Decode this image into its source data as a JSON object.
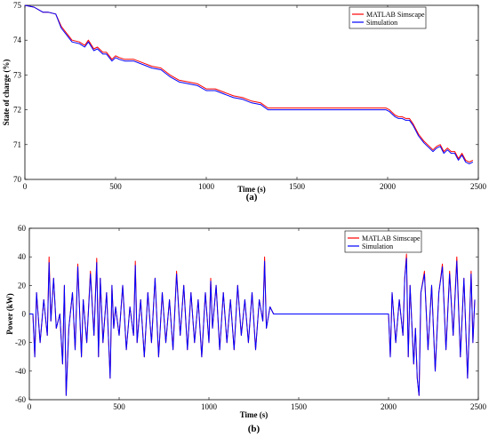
{
  "colors": {
    "matlab": "#ff0000",
    "simulation": "#0000ff",
    "axis": "#000000"
  },
  "chart_data": [
    {
      "type": "line",
      "caption": "(a)",
      "xlabel": "Time (s)",
      "ylabel": "State of charge (%)",
      "xlim": [
        0,
        2500
      ],
      "ylim": [
        70,
        75
      ],
      "xticks": [
        "0",
        "500",
        "1000",
        "1500",
        "2000",
        "2500"
      ],
      "yticks": [
        "70",
        "71",
        "72",
        "73",
        "74",
        "75"
      ],
      "grid": false,
      "legend_position": "top-right",
      "series": [
        {
          "name": "MATLAB Simscape",
          "color": "#ff0000",
          "x": [
            0,
            50,
            100,
            130,
            170,
            200,
            230,
            260,
            300,
            330,
            350,
            380,
            400,
            430,
            450,
            480,
            500,
            520,
            550,
            600,
            650,
            700,
            750,
            800,
            850,
            900,
            950,
            1000,
            1050,
            1100,
            1150,
            1200,
            1250,
            1300,
            1340,
            1360,
            1400,
            1500,
            1600,
            1700,
            1800,
            1900,
            1990,
            2010,
            2040,
            2060,
            2080,
            2100,
            2120,
            2140,
            2170,
            2200,
            2230,
            2250,
            2270,
            2290,
            2310,
            2330,
            2350,
            2370,
            2390,
            2410,
            2430,
            2450,
            2470
          ],
          "y": [
            75.0,
            74.95,
            74.8,
            74.8,
            74.75,
            74.4,
            74.2,
            74.0,
            73.95,
            73.85,
            74.0,
            73.75,
            73.8,
            73.65,
            73.65,
            73.45,
            73.55,
            73.5,
            73.45,
            73.45,
            73.35,
            73.25,
            73.2,
            73.0,
            72.85,
            72.8,
            72.75,
            72.6,
            72.6,
            72.5,
            72.4,
            72.35,
            72.25,
            72.2,
            72.05,
            72.05,
            72.05,
            72.05,
            72.05,
            72.05,
            72.05,
            72.05,
            72.05,
            72.0,
            71.85,
            71.8,
            71.8,
            71.75,
            71.75,
            71.6,
            71.3,
            71.1,
            70.95,
            70.85,
            70.95,
            71.0,
            70.8,
            70.9,
            70.8,
            70.8,
            70.6,
            70.75,
            70.55,
            70.5,
            70.55
          ]
        },
        {
          "name": "Simulation",
          "color": "#0000ff",
          "x": [
            0,
            50,
            100,
            130,
            170,
            200,
            230,
            260,
            300,
            330,
            350,
            380,
            400,
            430,
            450,
            480,
            500,
            520,
            550,
            600,
            650,
            700,
            750,
            800,
            850,
            900,
            950,
            1000,
            1050,
            1100,
            1150,
            1200,
            1250,
            1300,
            1340,
            1360,
            1400,
            1500,
            1600,
            1700,
            1800,
            1900,
            1990,
            2010,
            2040,
            2060,
            2080,
            2100,
            2120,
            2140,
            2170,
            2200,
            2230,
            2250,
            2270,
            2290,
            2310,
            2330,
            2350,
            2370,
            2390,
            2410,
            2430,
            2450,
            2470
          ],
          "y": [
            75.0,
            74.95,
            74.8,
            74.8,
            74.75,
            74.35,
            74.15,
            73.95,
            73.9,
            73.8,
            73.95,
            73.7,
            73.75,
            73.6,
            73.6,
            73.4,
            73.5,
            73.45,
            73.4,
            73.4,
            73.3,
            73.2,
            73.15,
            72.95,
            72.8,
            72.75,
            72.7,
            72.55,
            72.55,
            72.45,
            72.35,
            72.3,
            72.2,
            72.15,
            72.0,
            72.0,
            72.0,
            72.0,
            72.0,
            72.0,
            72.0,
            72.0,
            72.0,
            71.95,
            71.8,
            71.75,
            71.75,
            71.7,
            71.7,
            71.55,
            71.25,
            71.05,
            70.9,
            70.8,
            70.9,
            70.95,
            70.75,
            70.85,
            70.75,
            70.75,
            70.55,
            70.7,
            70.5,
            70.45,
            70.5
          ]
        }
      ]
    },
    {
      "type": "line",
      "caption": "(b)",
      "xlabel": "Time (s)",
      "ylabel": "Power (kW)",
      "xlim": [
        0,
        2500
      ],
      "ylim": [
        -60,
        60
      ],
      "xticks": [
        "0",
        "500",
        "1000",
        "1500",
        "2000",
        "2500"
      ],
      "yticks": [
        "-60",
        "-40",
        "-20",
        "0",
        "20",
        "40",
        "60"
      ],
      "grid": false,
      "legend_position": "top-right",
      "series": [
        {
          "name": "MATLAB Simscape",
          "color": "#ff0000",
          "x": [
            0,
            20,
            30,
            40,
            60,
            80,
            100,
            110,
            120,
            135,
            150,
            170,
            185,
            195,
            205,
            220,
            240,
            255,
            270,
            290,
            300,
            320,
            340,
            360,
            375,
            385,
            395,
            410,
            430,
            450,
            460,
            470,
            480,
            500,
            520,
            540,
            560,
            580,
            590,
            600,
            620,
            640,
            660,
            680,
            700,
            720,
            740,
            760,
            780,
            800,
            820,
            840,
            860,
            880,
            900,
            920,
            940,
            960,
            980,
            1000,
            1010,
            1020,
            1040,
            1060,
            1080,
            1100,
            1120,
            1140,
            1160,
            1180,
            1200,
            1220,
            1240,
            1260,
            1280,
            1300,
            1310,
            1320,
            1340,
            1360,
            1370,
            1500,
            1700,
            1900,
            1990,
            2000,
            2010,
            2020,
            2040,
            2060,
            2080,
            2090,
            2100,
            2110,
            2120,
            2140,
            2150,
            2160,
            2170,
            2180,
            2200,
            2220,
            2240,
            2260,
            2280,
            2300,
            2320,
            2340,
            2360,
            2380,
            2400,
            2420,
            2440,
            2460,
            2470,
            2480
          ],
          "y": [
            0,
            0,
            -30,
            15,
            -20,
            10,
            -15,
            40,
            -5,
            25,
            -10,
            0,
            -35,
            20,
            -57,
            -10,
            15,
            -25,
            35,
            -30,
            10,
            -20,
            30,
            -15,
            39,
            -30,
            25,
            -20,
            15,
            -45,
            20,
            -10,
            5,
            -15,
            20,
            -25,
            5,
            -15,
            37,
            -20,
            10,
            -30,
            15,
            -20,
            25,
            -30,
            15,
            -20,
            10,
            -25,
            30,
            -15,
            20,
            -25,
            15,
            -20,
            10,
            -30,
            15,
            -20,
            25,
            -10,
            20,
            -25,
            15,
            -20,
            10,
            -25,
            20,
            -15,
            10,
            -20,
            15,
            -25,
            10,
            -5,
            40,
            -10,
            5,
            0,
            0,
            0,
            0,
            0,
            0,
            0,
            -30,
            15,
            -20,
            10,
            -15,
            25,
            42,
            -30,
            20,
            -35,
            -10,
            -45,
            -57,
            15,
            30,
            -25,
            20,
            -40,
            15,
            35,
            -25,
            30,
            -15,
            40,
            -30,
            25,
            -45,
            30,
            -20,
            10
          ]
        },
        {
          "name": "Simulation",
          "color": "#0000ff",
          "x": [
            0,
            20,
            30,
            40,
            60,
            80,
            100,
            110,
            120,
            135,
            150,
            170,
            185,
            195,
            205,
            220,
            240,
            255,
            270,
            290,
            300,
            320,
            340,
            360,
            375,
            385,
            395,
            410,
            430,
            450,
            460,
            470,
            480,
            500,
            520,
            540,
            560,
            580,
            590,
            600,
            620,
            640,
            660,
            680,
            700,
            720,
            740,
            760,
            780,
            800,
            820,
            840,
            860,
            880,
            900,
            920,
            940,
            960,
            980,
            1000,
            1010,
            1020,
            1040,
            1060,
            1080,
            1100,
            1120,
            1140,
            1160,
            1180,
            1200,
            1220,
            1240,
            1260,
            1280,
            1300,
            1310,
            1320,
            1340,
            1360,
            1370,
            1500,
            1700,
            1900,
            1990,
            2000,
            2010,
            2020,
            2040,
            2060,
            2080,
            2090,
            2100,
            2110,
            2120,
            2140,
            2150,
            2160,
            2170,
            2180,
            2200,
            2220,
            2240,
            2260,
            2280,
            2300,
            2320,
            2340,
            2360,
            2380,
            2400,
            2420,
            2440,
            2460,
            2470,
            2480
          ],
          "y": [
            0,
            0,
            -30,
            15,
            -20,
            10,
            -15,
            36,
            -5,
            25,
            -10,
            0,
            -35,
            20,
            -57,
            -10,
            15,
            -25,
            33,
            -30,
            10,
            -20,
            28,
            -15,
            36,
            -30,
            25,
            -20,
            15,
            -45,
            20,
            -10,
            5,
            -15,
            20,
            -25,
            5,
            -15,
            34,
            -20,
            10,
            -30,
            15,
            -20,
            25,
            -30,
            15,
            -20,
            10,
            -25,
            28,
            -15,
            20,
            -25,
            15,
            -20,
            10,
            -30,
            15,
            -20,
            23,
            -10,
            20,
            -25,
            15,
            -20,
            10,
            -25,
            20,
            -15,
            10,
            -20,
            15,
            -25,
            10,
            -5,
            37,
            -10,
            5,
            0,
            0,
            0,
            0,
            0,
            0,
            0,
            -30,
            15,
            -20,
            10,
            -15,
            25,
            39,
            -30,
            20,
            -35,
            -10,
            -45,
            -57,
            15,
            28,
            -25,
            20,
            -40,
            15,
            33,
            -25,
            28,
            -15,
            37,
            -30,
            25,
            -45,
            28,
            -20,
            10
          ]
        }
      ]
    }
  ]
}
